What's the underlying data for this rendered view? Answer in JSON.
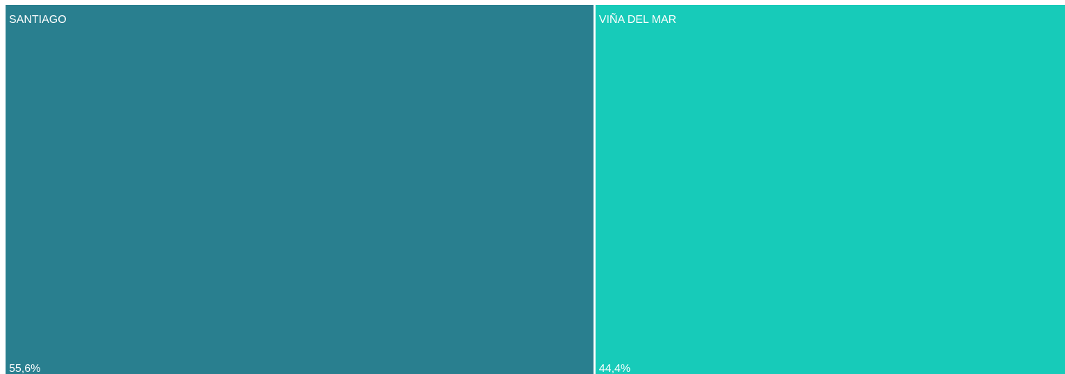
{
  "chart_data": {
    "type": "treemap",
    "categories": [
      "SANTIAGO",
      "VIÑA DEL MAR"
    ],
    "values": [
      55.6,
      44.4
    ],
    "value_labels": [
      "55,6%",
      "44,4%"
    ],
    "colors": [
      "#297f8f",
      "#17cbb9"
    ]
  }
}
